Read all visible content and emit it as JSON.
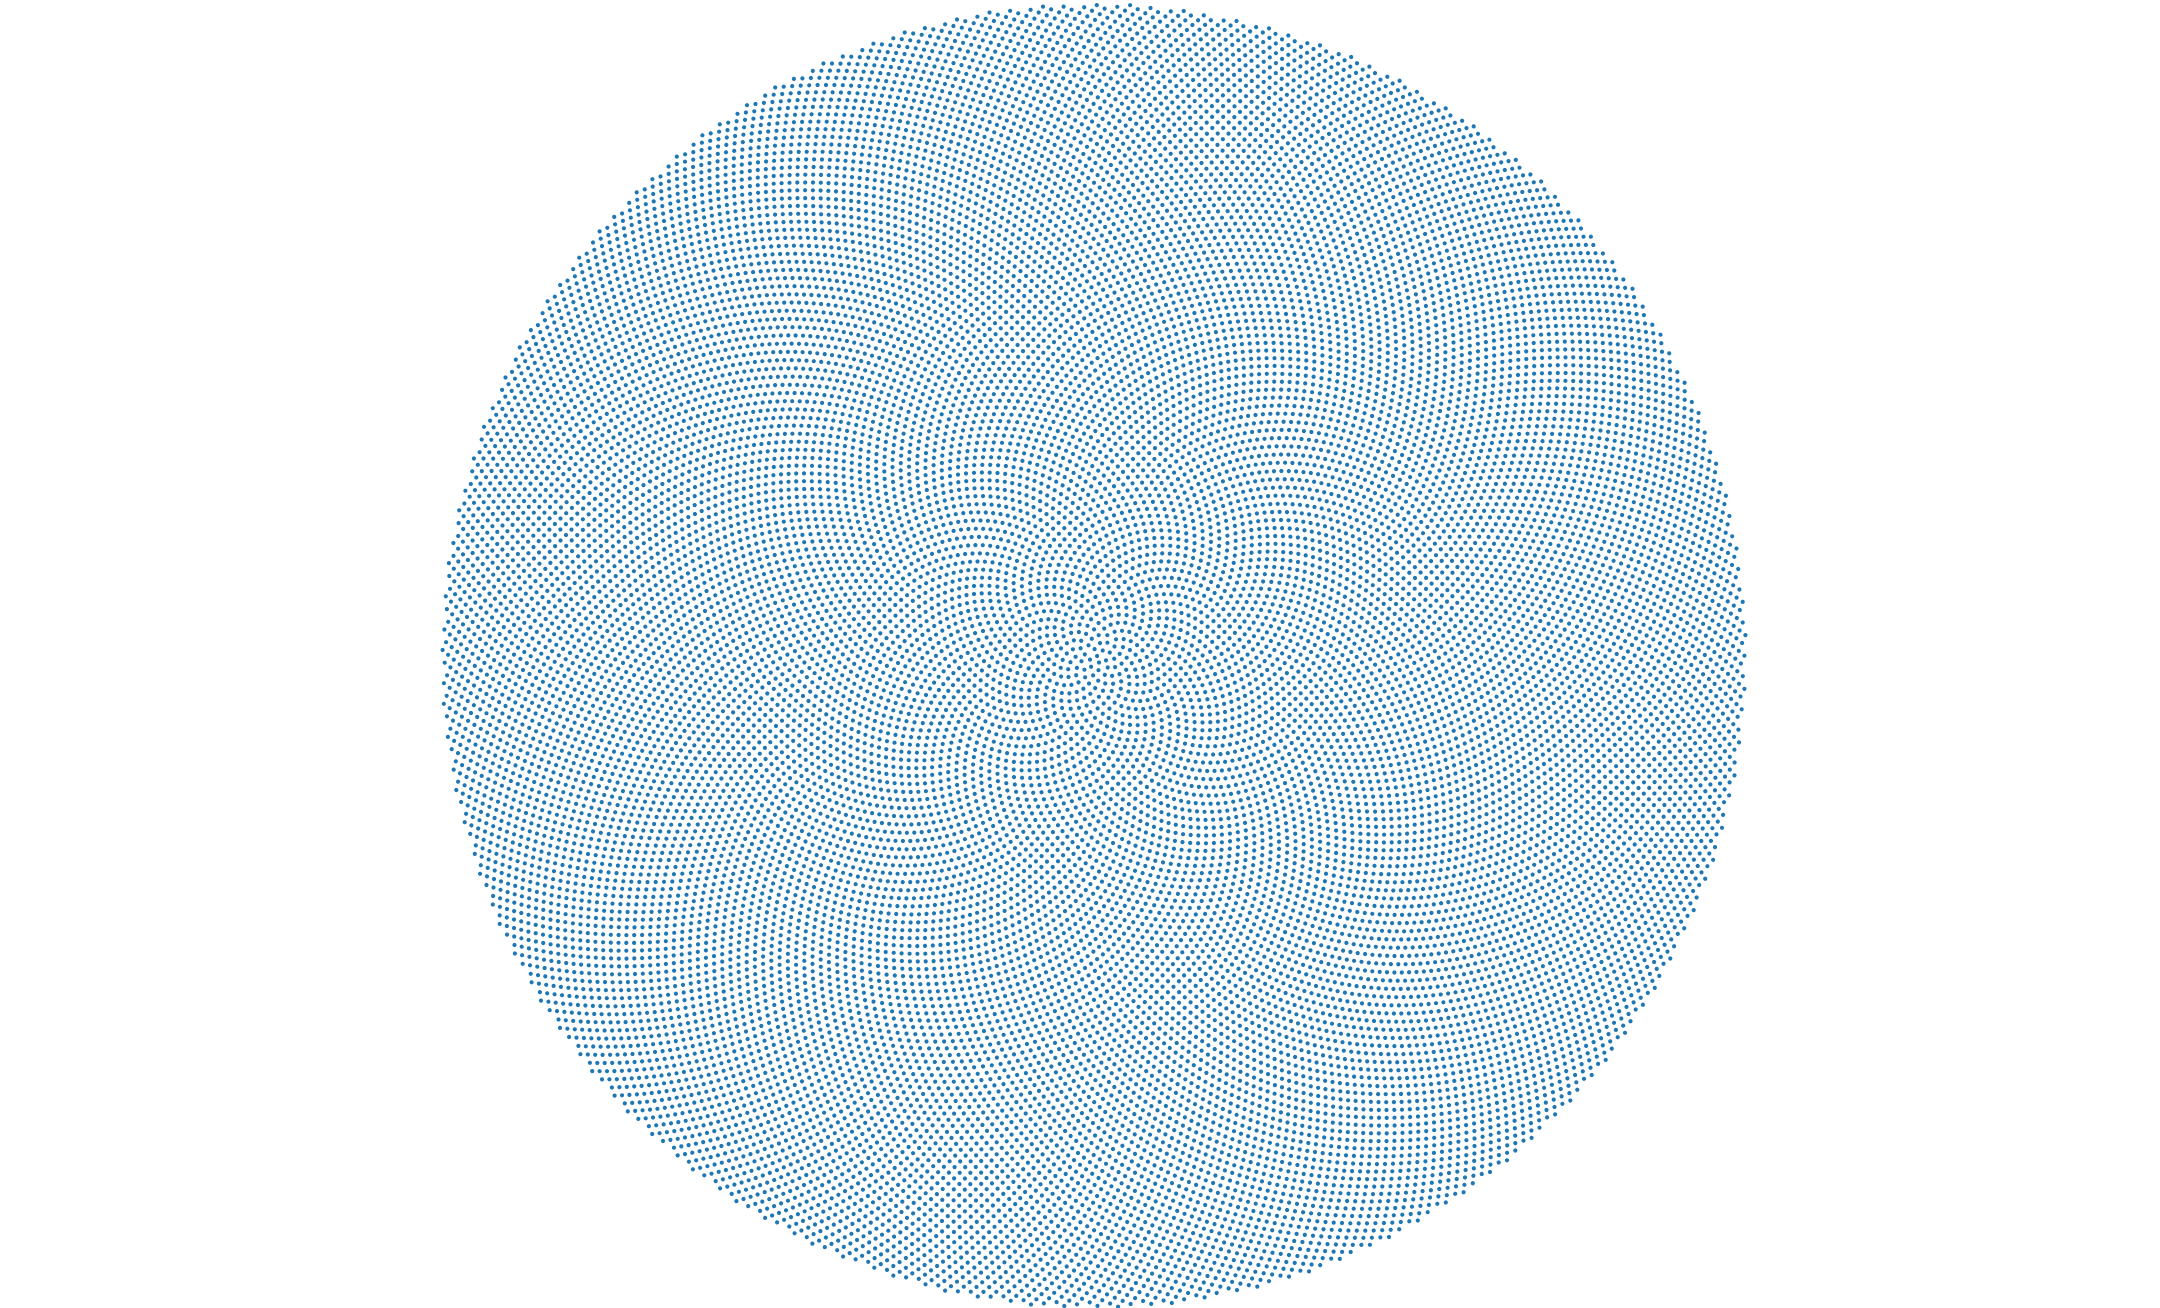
{
  "figure": {
    "color": "#1f77b4"
  }
}
